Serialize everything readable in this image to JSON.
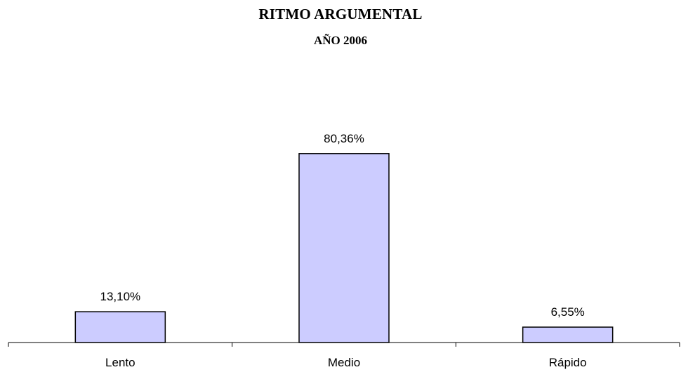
{
  "chart_data": {
    "type": "bar",
    "title": "RITMO ARGUMENTAL",
    "subtitle": "AÑO 2006",
    "categories": [
      "Lento",
      "Medio",
      "Rápido"
    ],
    "values": [
      13.1,
      80.36,
      6.55
    ],
    "data_labels": [
      "13,10%",
      "80,36%",
      "6,55%"
    ],
    "ylim": [
      0,
      100
    ],
    "grid": false,
    "legend": "none",
    "bar_color": "#ccccff",
    "bar_edge_color": "#000000"
  }
}
